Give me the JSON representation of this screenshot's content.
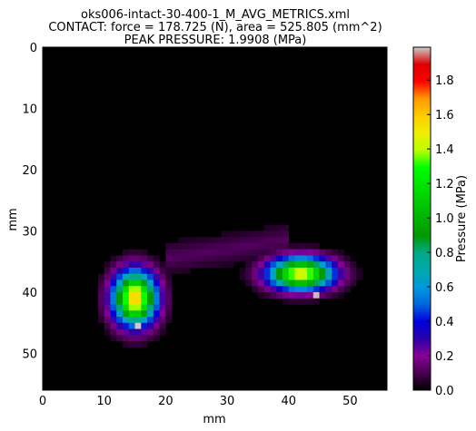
{
  "chart_data": {
    "type": "heatmap",
    "title": [
      "oks006-intact-30-400-1_M_AVG_METRICS.xml",
      "CONTACT: force = 178.725 (N), area = 525.805 (mm^2)",
      "PEAK PRESSURE: 1.9908 (MPa)"
    ],
    "xlabel": "mm",
    "ylabel": "mm",
    "xlim": [
      0,
      56
    ],
    "ylim": [
      56,
      0
    ],
    "x_ticks": [
      0,
      10,
      20,
      30,
      40,
      50
    ],
    "y_ticks": [
      0,
      10,
      20,
      30,
      40,
      50
    ],
    "grid": false,
    "colormap": "nipy_spectral",
    "colorbar": {
      "label": "Pressure (MPa)",
      "range": [
        0.0,
        1.9908
      ],
      "ticks": [
        "0.0",
        "0.2",
        "0.4",
        "0.6",
        "0.8",
        "1.0",
        "1.2",
        "1.4",
        "1.6",
        "1.8"
      ],
      "tick_values": [
        0.0,
        0.2,
        0.4,
        0.6,
        0.8,
        1.0,
        1.2,
        1.4,
        1.6,
        1.8
      ]
    },
    "peak_pressure": 1.9908,
    "contact_regions": [
      {
        "name": "",
        "center_mm": [
          15,
          41
        ],
        "peak_mm": [
          15.5,
          45.5
        ],
        "peak_value": 1.99,
        "radius_mm": [
          4,
          5
        ],
        "value": 1.6
      },
      {
        "name": "",
        "center_mm": [
          42,
          37
        ],
        "peak_mm": [
          44.5,
          40.5
        ],
        "peak_value": 1.98,
        "radius_mm": [
          6,
          3
        ],
        "value": 1.5
      }
    ],
    "background_value": 0.0
  }
}
